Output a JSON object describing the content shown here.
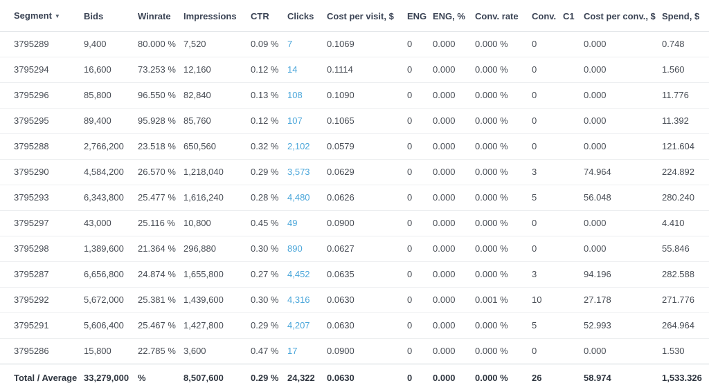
{
  "colors": {
    "header_text": "#3a4354",
    "body_text": "#484d55",
    "link_blue": "#4aa6da",
    "row_divider": "#eceef0",
    "total_divider": "#ced3d9",
    "background": "#ffffff"
  },
  "table": {
    "sort_icon": "▼",
    "sort_column_index": 0,
    "link_column_index": 5,
    "columns": [
      {
        "label": "Segment"
      },
      {
        "label": "Bids"
      },
      {
        "label": "Winrate"
      },
      {
        "label": "Impressions"
      },
      {
        "label": "CTR"
      },
      {
        "label": "Clicks"
      },
      {
        "label": "Cost per visit, $"
      },
      {
        "label": "ENG"
      },
      {
        "label": "ENG, %"
      },
      {
        "label": "Conv. rate"
      },
      {
        "label": "Conv."
      },
      {
        "label": "C1"
      },
      {
        "label": "Cost per conv., $"
      },
      {
        "label": "Spend, $"
      }
    ],
    "rows": [
      [
        "3795289",
        "9,400",
        "80.000 %",
        "7,520",
        "0.09 %",
        "7",
        "0.1069",
        "0",
        "0.000",
        "0.000 %",
        "0",
        "",
        "0.000",
        "0.748"
      ],
      [
        "3795294",
        "16,600",
        "73.253 %",
        "12,160",
        "0.12 %",
        "14",
        "0.1114",
        "0",
        "0.000",
        "0.000 %",
        "0",
        "",
        "0.000",
        "1.560"
      ],
      [
        "3795296",
        "85,800",
        "96.550 %",
        "82,840",
        "0.13 %",
        "108",
        "0.1090",
        "0",
        "0.000",
        "0.000 %",
        "0",
        "",
        "0.000",
        "11.776"
      ],
      [
        "3795295",
        "89,400",
        "95.928 %",
        "85,760",
        "0.12 %",
        "107",
        "0.1065",
        "0",
        "0.000",
        "0.000 %",
        "0",
        "",
        "0.000",
        "11.392"
      ],
      [
        "3795288",
        "2,766,200",
        "23.518 %",
        "650,560",
        "0.32 %",
        "2,102",
        "0.0579",
        "0",
        "0.000",
        "0.000 %",
        "0",
        "",
        "0.000",
        "121.604"
      ],
      [
        "3795290",
        "4,584,200",
        "26.570 %",
        "1,218,040",
        "0.29 %",
        "3,573",
        "0.0629",
        "0",
        "0.000",
        "0.000 %",
        "3",
        "",
        "74.964",
        "224.892"
      ],
      [
        "3795293",
        "6,343,800",
        "25.477 %",
        "1,616,240",
        "0.28 %",
        "4,480",
        "0.0626",
        "0",
        "0.000",
        "0.000 %",
        "5",
        "",
        "56.048",
        "280.240"
      ],
      [
        "3795297",
        "43,000",
        "25.116 %",
        "10,800",
        "0.45 %",
        "49",
        "0.0900",
        "0",
        "0.000",
        "0.000 %",
        "0",
        "",
        "0.000",
        "4.410"
      ],
      [
        "3795298",
        "1,389,600",
        "21.364 %",
        "296,880",
        "0.30 %",
        "890",
        "0.0627",
        "0",
        "0.000",
        "0.000 %",
        "0",
        "",
        "0.000",
        "55.846"
      ],
      [
        "3795287",
        "6,656,800",
        "24.874 %",
        "1,655,800",
        "0.27 %",
        "4,452",
        "0.0635",
        "0",
        "0.000",
        "0.000 %",
        "3",
        "",
        "94.196",
        "282.588"
      ],
      [
        "3795292",
        "5,672,000",
        "25.381 %",
        "1,439,600",
        "0.30 %",
        "4,316",
        "0.0630",
        "0",
        "0.000",
        "0.001 %",
        "10",
        "",
        "27.178",
        "271.776"
      ],
      [
        "3795291",
        "5,606,400",
        "25.467 %",
        "1,427,800",
        "0.29 %",
        "4,207",
        "0.0630",
        "0",
        "0.000",
        "0.000 %",
        "5",
        "",
        "52.993",
        "264.964"
      ],
      [
        "3795286",
        "15,800",
        "22.785 %",
        "3,600",
        "0.47 %",
        "17",
        "0.0900",
        "0",
        "0.000",
        "0.000 %",
        "0",
        "",
        "0.000",
        "1.530"
      ]
    ],
    "total_row": [
      "Total / Average",
      "33,279,000",
      "%",
      "8,507,600",
      "0.29 %",
      "24,322",
      "0.0630",
      "0",
      "0.000",
      "0.000 %",
      "26",
      "",
      "58.974",
      "1,533.326"
    ]
  }
}
